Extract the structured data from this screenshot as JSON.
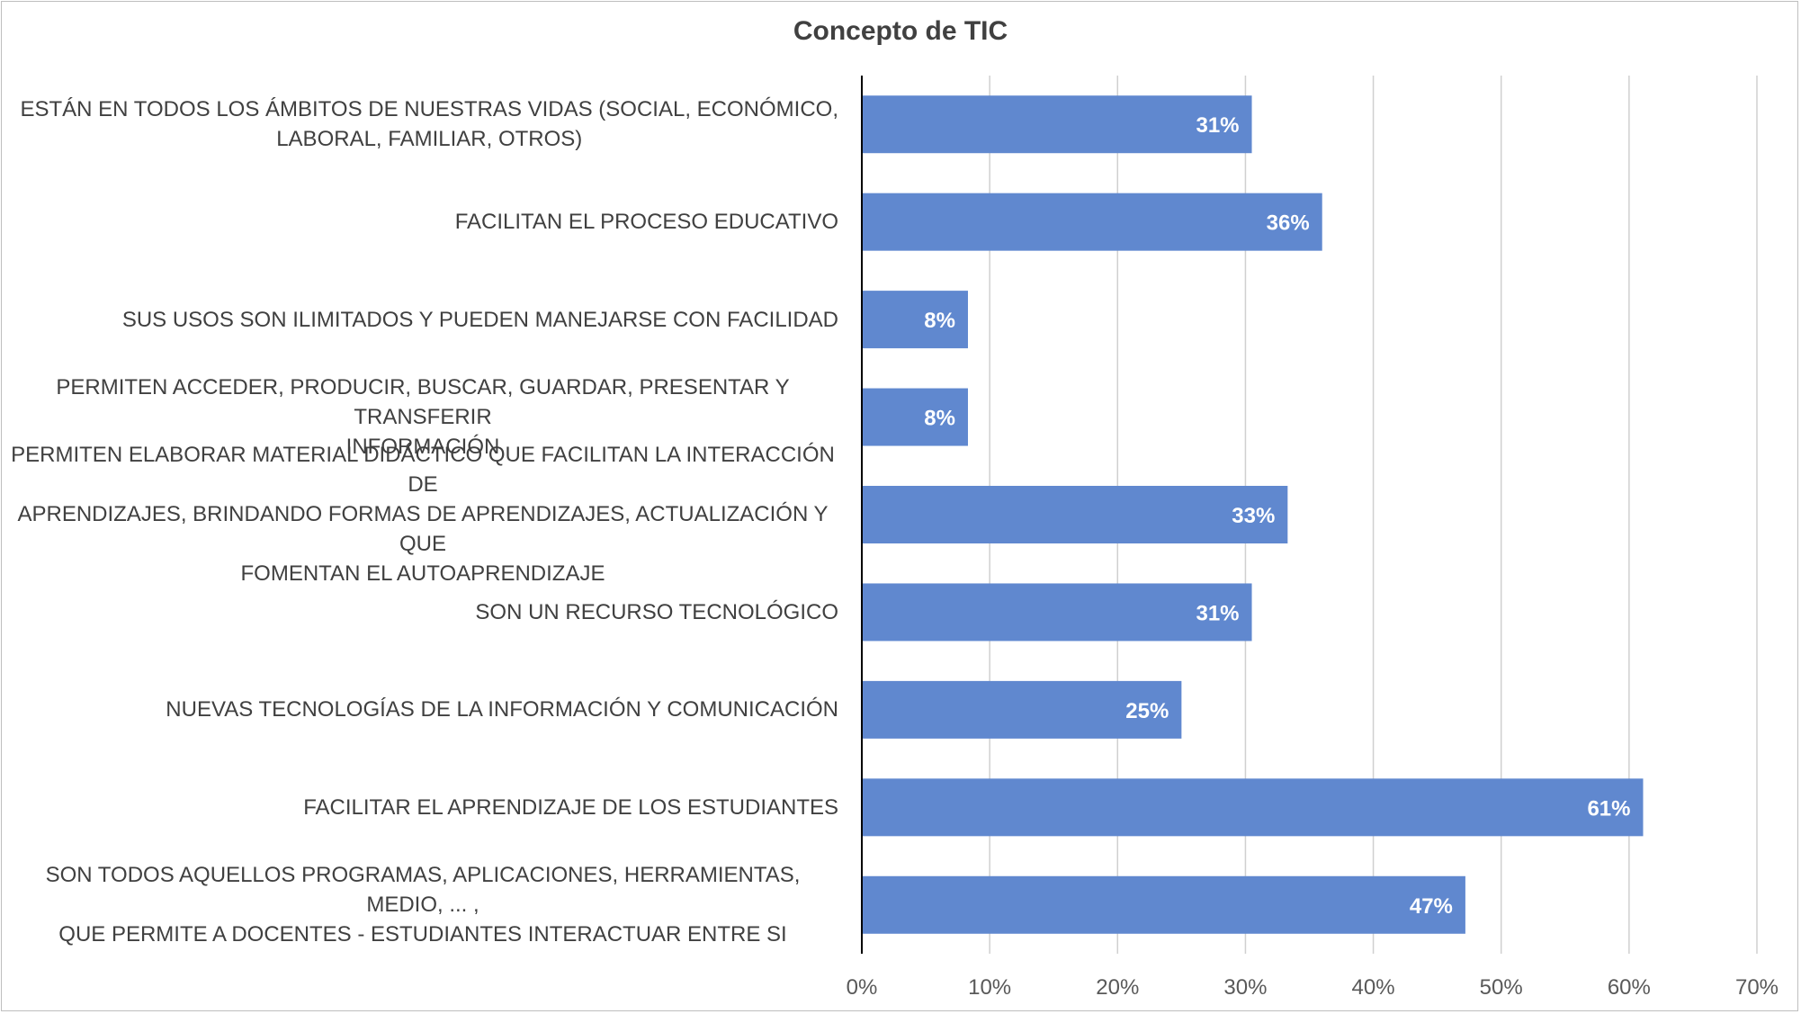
{
  "chart_data": {
    "type": "bar",
    "orientation": "horizontal",
    "title": "Concepto de TIC",
    "categories": [
      "ESTÁN EN TODOS LOS ÁMBITOS DE NUESTRAS VIDAS (SOCIAL, ECONÓMICO, LABORAL, FAMILIAR, OTROS)",
      "FACILITAN EL PROCESO EDUCATIVO",
      "SUS USOS SON ILIMITADOS Y PUEDEN MANEJARSE CON FACILIDAD",
      "PERMITEN ACCEDER, PRODUCIR, BUSCAR, GUARDAR, PRESENTAR Y TRANSFERIR INFORMACIÓN",
      "PERMITEN ELABORAR MATERIAL DIDÁCTICO QUE FACILITAN LA INTERACCIÓN DE APRENDIZAJES, BRINDANDO FORMAS DE APRENDIZAJES, ACTUALIZACIÓN Y QUE FOMENTAN EL AUTOAPRENDIZAJE",
      "SON UN RECURSO TECNOLÓGICO",
      "NUEVAS TECNOLOGÍAS DE LA INFORMACIÓN Y COMUNICACIÓN",
      "FACILITAR EL APRENDIZAJE DE LOS ESTUDIANTES",
      "SON TODOS AQUELLOS PROGRAMAS, APLICACIONES, HERRAMIENTAS, MEDIO, ... , QUE PERMITE A DOCENTES - ESTUDIANTES INTERACTUAR ENTRE SI"
    ],
    "category_lines": [
      [
        "ESTÁN EN TODOS LOS ÁMBITOS DE NUESTRAS VIDAS (SOCIAL, ECONÓMICO,",
        "LABORAL, FAMILIAR, OTROS)"
      ],
      [
        "FACILITAN EL PROCESO EDUCATIVO"
      ],
      [
        "SUS USOS SON ILIMITADOS Y PUEDEN MANEJARSE CON FACILIDAD"
      ],
      [
        "PERMITEN ACCEDER, PRODUCIR, BUSCAR, GUARDAR, PRESENTAR Y TRANSFERIR",
        "INFORMACIÓN"
      ],
      [
        "PERMITEN ELABORAR MATERIAL DIDÁCTICO QUE FACILITAN LA INTERACCIÓN DE",
        "APRENDIZAJES, BRINDANDO FORMAS DE APRENDIZAJES, ACTUALIZACIÓN Y QUE",
        "FOMENTAN EL AUTOAPRENDIZAJE"
      ],
      [
        "SON UN RECURSO TECNOLÓGICO"
      ],
      [
        "NUEVAS TECNOLOGÍAS DE LA INFORMACIÓN Y COMUNICACIÓN"
      ],
      [
        "FACILITAR EL APRENDIZAJE DE LOS ESTUDIANTES"
      ],
      [
        "SON TODOS AQUELLOS PROGRAMAS, APLICACIONES, HERRAMIENTAS, MEDIO, ... ,",
        "QUE PERMITE A DOCENTES - ESTUDIANTES INTERACTUAR ENTRE SI"
      ]
    ],
    "values": [
      30.5,
      36,
      8.3,
      8.3,
      33.3,
      30.5,
      25,
      61.1,
      47.2
    ],
    "data_labels": [
      "31%",
      "36%",
      "8%",
      "8%",
      "33%",
      "31%",
      "25%",
      "61%",
      "47%"
    ],
    "xlim": [
      0,
      70
    ],
    "x_ticks": [
      0,
      10,
      20,
      30,
      40,
      50,
      60,
      70
    ],
    "x_tick_labels": [
      "0%",
      "10%",
      "20%",
      "30%",
      "40%",
      "50%",
      "60%",
      "70%"
    ],
    "xlabel": "",
    "ylabel": "",
    "grid": "vertical",
    "legend": "none",
    "bar_color": "#6088cf",
    "grid_color": "#d0d0d0",
    "axis_color": "#000000"
  }
}
